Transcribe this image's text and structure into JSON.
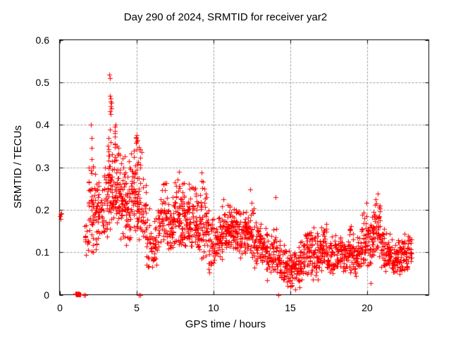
{
  "chart_data": {
    "type": "scatter",
    "title": "Day 290 of 2024, SRMTID for receiver yar2",
    "xlabel": "GPS time / hours",
    "ylabel": "SRMTID / TECUs",
    "xlim": [
      0,
      24
    ],
    "ylim": [
      0,
      0.6
    ],
    "xticks": [
      {
        "label": "0",
        "value": 0
      },
      {
        "label": "5",
        "value": 5
      },
      {
        "label": "10",
        "value": 10
      },
      {
        "label": "15",
        "value": 15
      },
      {
        "label": "20",
        "value": 20
      }
    ],
    "yticks": [
      {
        "label": "0",
        "value": 0
      },
      {
        "label": "0.1",
        "value": 0.1
      },
      {
        "label": "0.2",
        "value": 0.2
      },
      {
        "label": "0.3",
        "value": 0.3
      },
      {
        "label": "0.4",
        "value": 0.4
      },
      {
        "label": "0.5",
        "value": 0.5
      },
      {
        "label": "0.6",
        "value": 0.6
      }
    ],
    "grid": true,
    "legend": null,
    "marker": "plus",
    "colors": {
      "marker": "#ff0000",
      "grid": "#9e9e9e",
      "axis": "#000000",
      "background": "#ffffff",
      "text": "#000000"
    },
    "bin_width": 0.25,
    "point_bins": [
      [
        1.75,
        0.05,
        0.23,
        12
      ],
      [
        2.0,
        0.06,
        0.4,
        30
      ],
      [
        2.25,
        0.1,
        0.31,
        26
      ],
      [
        2.5,
        0.1,
        0.3,
        28
      ],
      [
        2.75,
        0.12,
        0.26,
        16
      ],
      [
        3.0,
        0.13,
        0.31,
        22
      ],
      [
        3.25,
        0.15,
        0.43,
        40
      ],
      [
        3.5,
        0.15,
        0.45,
        34
      ],
      [
        3.75,
        0.13,
        0.37,
        30
      ],
      [
        4.0,
        0.12,
        0.35,
        30
      ],
      [
        4.25,
        0.1,
        0.35,
        28
      ],
      [
        4.5,
        0.12,
        0.35,
        28
      ],
      [
        4.75,
        0.15,
        0.36,
        30
      ],
      [
        5.0,
        0.14,
        0.38,
        32
      ],
      [
        5.25,
        0.1,
        0.36,
        28
      ],
      [
        5.5,
        0.08,
        0.3,
        22
      ],
      [
        5.75,
        0.05,
        0.22,
        18
      ],
      [
        6.0,
        0.05,
        0.18,
        16
      ],
      [
        6.25,
        0.06,
        0.2,
        18
      ],
      [
        6.5,
        0.08,
        0.25,
        20
      ],
      [
        6.75,
        0.1,
        0.31,
        24
      ],
      [
        7.0,
        0.1,
        0.3,
        24
      ],
      [
        7.25,
        0.08,
        0.24,
        22
      ],
      [
        7.5,
        0.1,
        0.28,
        24
      ],
      [
        7.75,
        0.1,
        0.31,
        26
      ],
      [
        8.0,
        0.1,
        0.3,
        26
      ],
      [
        8.25,
        0.1,
        0.27,
        24
      ],
      [
        8.5,
        0.1,
        0.3,
        26
      ],
      [
        8.75,
        0.1,
        0.28,
        26
      ],
      [
        9.0,
        0.08,
        0.26,
        24
      ],
      [
        9.25,
        0.08,
        0.31,
        26
      ],
      [
        9.5,
        0.06,
        0.28,
        24
      ],
      [
        9.75,
        0.05,
        0.22,
        22
      ],
      [
        10.0,
        0.06,
        0.2,
        22
      ],
      [
        10.25,
        0.08,
        0.2,
        24
      ],
      [
        10.5,
        0.08,
        0.22,
        24
      ],
      [
        10.75,
        0.1,
        0.23,
        26
      ],
      [
        11.0,
        0.1,
        0.23,
        26
      ],
      [
        11.25,
        0.11,
        0.22,
        26
      ],
      [
        11.5,
        0.1,
        0.22,
        26
      ],
      [
        11.75,
        0.08,
        0.2,
        24
      ],
      [
        12.0,
        0.08,
        0.22,
        24
      ],
      [
        12.25,
        0.09,
        0.22,
        26
      ],
      [
        12.5,
        0.08,
        0.26,
        24
      ],
      [
        12.75,
        0.06,
        0.2,
        22
      ],
      [
        13.0,
        0.07,
        0.19,
        24
      ],
      [
        13.25,
        0.06,
        0.16,
        22
      ],
      [
        13.5,
        0.04,
        0.18,
        22
      ],
      [
        13.75,
        0.05,
        0.16,
        20
      ],
      [
        14.0,
        0.05,
        0.17,
        20
      ],
      [
        14.25,
        0.04,
        0.14,
        20
      ],
      [
        14.5,
        0.03,
        0.12,
        20
      ],
      [
        14.75,
        0.02,
        0.12,
        22
      ],
      [
        15.0,
        0.01,
        0.14,
        24
      ],
      [
        15.25,
        0.02,
        0.12,
        24
      ],
      [
        15.5,
        0.02,
        0.12,
        22
      ],
      [
        15.75,
        0.03,
        0.14,
        22
      ],
      [
        16.0,
        0.04,
        0.16,
        22
      ],
      [
        16.25,
        0.04,
        0.18,
        22
      ],
      [
        16.5,
        0.04,
        0.16,
        22
      ],
      [
        16.75,
        0.04,
        0.15,
        22
      ],
      [
        17.0,
        0.05,
        0.17,
        24
      ],
      [
        17.25,
        0.06,
        0.19,
        22
      ],
      [
        17.5,
        0.05,
        0.15,
        22
      ],
      [
        17.75,
        0.04,
        0.14,
        22
      ],
      [
        18.0,
        0.05,
        0.16,
        24
      ],
      [
        18.25,
        0.05,
        0.17,
        22
      ],
      [
        18.5,
        0.04,
        0.14,
        22
      ],
      [
        18.75,
        0.05,
        0.16,
        22
      ],
      [
        19.0,
        0.05,
        0.18,
        24
      ],
      [
        19.25,
        0.04,
        0.15,
        22
      ],
      [
        19.5,
        0.05,
        0.16,
        22
      ],
      [
        19.75,
        0.06,
        0.21,
        22
      ],
      [
        20.0,
        0.06,
        0.24,
        24
      ],
      [
        20.25,
        0.03,
        0.22,
        24
      ],
      [
        20.5,
        0.08,
        0.24,
        26
      ],
      [
        20.75,
        0.08,
        0.22,
        26
      ],
      [
        21.0,
        0.06,
        0.18,
        24
      ],
      [
        21.25,
        0.05,
        0.16,
        22
      ],
      [
        21.5,
        0.05,
        0.15,
        24
      ],
      [
        21.75,
        0.04,
        0.14,
        22
      ],
      [
        22.0,
        0.04,
        0.13,
        24
      ],
      [
        22.25,
        0.05,
        0.14,
        22
      ],
      [
        22.5,
        0.05,
        0.15,
        24
      ],
      [
        22.75,
        0.06,
        0.16,
        20
      ]
    ],
    "extra_points": [
      [
        0.02,
        0.185
      ],
      [
        0.06,
        0.19
      ],
      [
        0.09,
        0.178
      ],
      [
        0.12,
        0.192
      ],
      [
        3.25,
        0.518
      ],
      [
        3.28,
        0.51
      ],
      [
        3.28,
        0.468
      ],
      [
        3.33,
        0.461
      ],
      [
        3.3,
        0.455
      ],
      [
        3.35,
        0.451
      ],
      [
        3.31,
        0.444
      ],
      [
        3.36,
        0.439
      ],
      [
        3.29,
        0.431
      ],
      [
        3.34,
        0.425
      ],
      [
        2.02,
        0.401
      ],
      [
        3.62,
        0.4
      ],
      [
        5.0,
        0.375
      ],
      [
        5.06,
        0.364
      ],
      [
        4.96,
        0.357
      ],
      [
        14.05,
        0.229
      ],
      [
        20.68,
        0.238
      ],
      [
        20.55,
        0.224
      ],
      [
        13.5,
        0.034
      ],
      [
        16.45,
        0.036
      ],
      [
        16.8,
        0.036
      ],
      [
        14.82,
        0.02
      ],
      [
        15.32,
        0.013
      ],
      [
        15.6,
        0.018
      ],
      [
        20.2,
        0.028
      ]
    ],
    "axis_markers": {
      "block": {
        "x_from": 1.04,
        "x_to": 1.34,
        "count": 26
      },
      "tick_hours": [
        1.58,
        1.68,
        5.15,
        5.23,
        14.2
      ]
    }
  }
}
